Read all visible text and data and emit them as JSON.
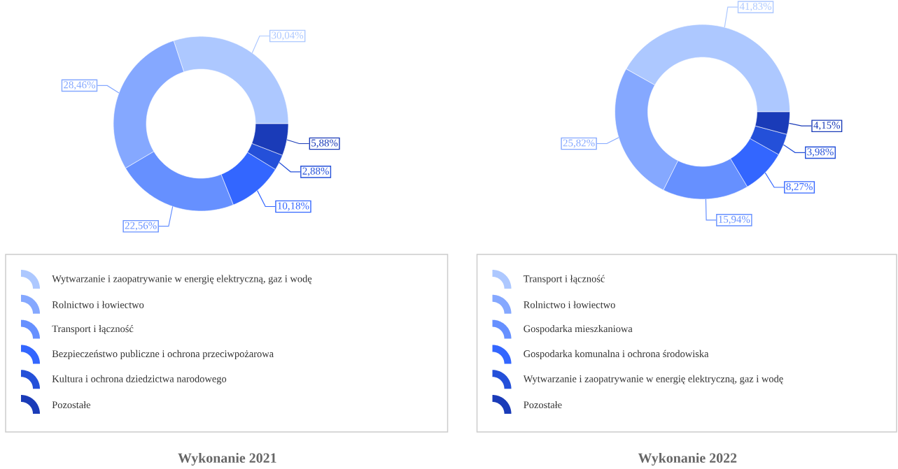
{
  "chart_data": [
    {
      "type": "donut",
      "title": "Wykonanie 2021",
      "legend": "bottom",
      "categories": [
        "Wytwarzanie i zaopatrywanie w energię elektryczną, gaz i wodę",
        "Rolnictwo i łowiectwo",
        "Transport i łączność",
        "Bezpieczeństwo publiczne i ochrona przeciwpożarowa",
        "Kultura i ochrona dziedzictwa narodowego",
        "Pozostałe"
      ],
      "values": [
        30.04,
        28.46,
        22.56,
        10.18,
        2.88,
        5.88
      ],
      "value_labels": [
        "30,04%",
        "28,46%",
        "22,56%",
        "10,18%",
        "2,88%",
        "5,88%"
      ],
      "colors": [
        "#adc8ff",
        "#85a8ff",
        "#6690ff",
        "#3366ff",
        "#2450d9",
        "#1a3bb8"
      ]
    },
    {
      "type": "donut",
      "title": "Wykonanie 2022",
      "legend": "bottom",
      "categories": [
        "Transport i łączność",
        "Rolnictwo i łowiectwo",
        "Gospodarka mieszkaniowa",
        "Gospodarka komunalna i ochrona środowiska",
        "Wytwarzanie i zaopatrywanie w energię elektryczną, gaz i wodę",
        "Pozostałe"
      ],
      "values": [
        41.83,
        25.82,
        15.94,
        8.27,
        3.98,
        4.15
      ],
      "value_labels": [
        "41,83%",
        "25,82%",
        "15,94%",
        "8,27%",
        "3,98%",
        "4,15%"
      ],
      "colors": [
        "#adc8ff",
        "#85a8ff",
        "#6690ff",
        "#3366ff",
        "#2450d9",
        "#1a3bb8"
      ]
    }
  ]
}
